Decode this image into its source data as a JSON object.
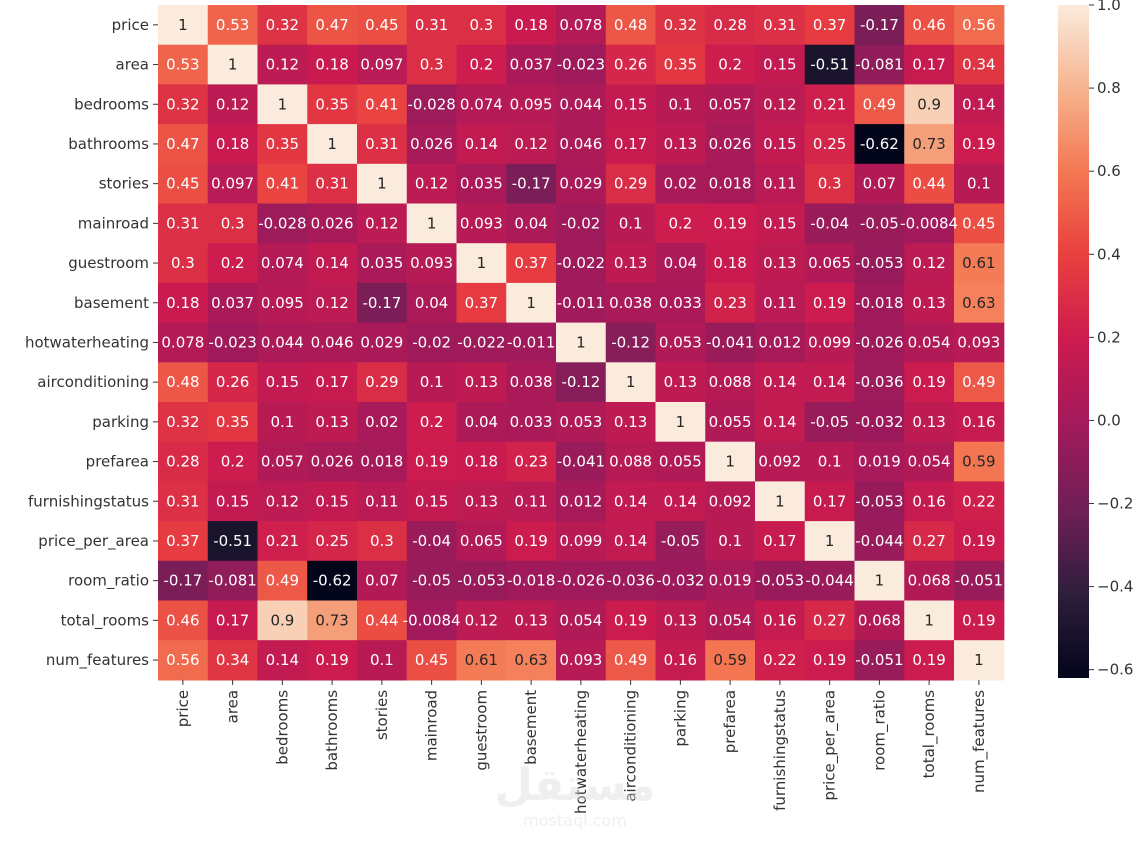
{
  "chart_data": {
    "type": "heatmap",
    "title": "",
    "xlabel": "",
    "ylabel": "",
    "labels": [
      "price",
      "area",
      "bedrooms",
      "bathrooms",
      "stories",
      "mainroad",
      "guestroom",
      "basement",
      "hotwaterheating",
      "airconditioning",
      "parking",
      "prefarea",
      "furnishingstatus",
      "price_per_area",
      "room_ratio",
      "total_rooms",
      "num_features"
    ],
    "matrix": [
      [
        1,
        0.53,
        0.32,
        0.47,
        0.45,
        0.31,
        0.3,
        0.18,
        0.078,
        0.48,
        0.32,
        0.28,
        0.31,
        0.37,
        -0.17,
        0.46,
        0.56
      ],
      [
        0.53,
        1,
        0.12,
        0.18,
        0.097,
        0.3,
        0.2,
        0.037,
        -0.023,
        0.26,
        0.35,
        0.2,
        0.15,
        -0.51,
        -0.081,
        0.17,
        0.34
      ],
      [
        0.32,
        0.12,
        1,
        0.35,
        0.41,
        -0.028,
        0.074,
        0.095,
        0.044,
        0.15,
        0.1,
        0.057,
        0.12,
        0.21,
        0.49,
        0.9,
        0.14
      ],
      [
        0.47,
        0.18,
        0.35,
        1,
        0.31,
        0.026,
        0.14,
        0.12,
        0.046,
        0.17,
        0.13,
        0.026,
        0.15,
        0.25,
        -0.62,
        0.73,
        0.19
      ],
      [
        0.45,
        0.097,
        0.41,
        0.31,
        1,
        0.12,
        0.035,
        -0.17,
        0.029,
        0.29,
        0.02,
        0.018,
        0.11,
        0.3,
        0.07,
        0.44,
        0.1
      ],
      [
        0.31,
        0.3,
        -0.028,
        0.026,
        0.12,
        1,
        0.093,
        0.04,
        -0.02,
        0.1,
        0.2,
        0.19,
        0.15,
        -0.04,
        -0.05,
        -0.0084,
        0.45
      ],
      [
        0.3,
        0.2,
        0.074,
        0.14,
        0.035,
        0.093,
        1,
        0.37,
        -0.022,
        0.13,
        0.04,
        0.18,
        0.13,
        0.065,
        -0.053,
        0.12,
        0.61
      ],
      [
        0.18,
        0.037,
        0.095,
        0.12,
        -0.17,
        0.04,
        0.37,
        1,
        -0.011,
        0.038,
        0.033,
        0.23,
        0.11,
        0.19,
        -0.018,
        0.13,
        0.63
      ],
      [
        0.078,
        -0.023,
        0.044,
        0.046,
        0.029,
        -0.02,
        -0.022,
        -0.011,
        1,
        -0.12,
        0.053,
        -0.041,
        0.012,
        0.099,
        -0.026,
        0.054,
        0.093
      ],
      [
        0.48,
        0.26,
        0.15,
        0.17,
        0.29,
        0.1,
        0.13,
        0.038,
        -0.12,
        1,
        0.13,
        0.088,
        0.14,
        0.14,
        -0.036,
        0.19,
        0.49
      ],
      [
        0.32,
        0.35,
        0.1,
        0.13,
        0.02,
        0.2,
        0.04,
        0.033,
        0.053,
        0.13,
        1,
        0.055,
        0.14,
        -0.05,
        -0.032,
        0.13,
        0.16
      ],
      [
        0.28,
        0.2,
        0.057,
        0.026,
        0.018,
        0.19,
        0.18,
        0.23,
        -0.041,
        0.088,
        0.055,
        1,
        0.092,
        0.1,
        0.019,
        0.054,
        0.59
      ],
      [
        0.31,
        0.15,
        0.12,
        0.15,
        0.11,
        0.15,
        0.13,
        0.11,
        0.012,
        0.14,
        0.14,
        0.092,
        1,
        0.17,
        -0.053,
        0.16,
        0.22
      ],
      [
        0.37,
        -0.51,
        0.21,
        0.25,
        0.3,
        -0.04,
        0.065,
        0.19,
        0.099,
        0.14,
        -0.05,
        0.1,
        0.17,
        1,
        -0.044,
        0.27,
        0.19
      ],
      [
        -0.17,
        -0.081,
        0.49,
        -0.62,
        0.07,
        -0.05,
        -0.053,
        -0.018,
        -0.026,
        -0.036,
        -0.032,
        0.019,
        -0.053,
        -0.044,
        1,
        0.068,
        -0.051
      ],
      [
        0.46,
        0.17,
        0.9,
        0.73,
        0.44,
        -0.0084,
        0.12,
        0.13,
        0.054,
        0.19,
        0.13,
        0.054,
        0.16,
        0.27,
        0.068,
        1,
        0.19
      ],
      [
        0.56,
        0.34,
        0.14,
        0.19,
        0.1,
        0.45,
        0.61,
        0.63,
        0.093,
        0.49,
        0.16,
        0.59,
        0.22,
        0.19,
        -0.051,
        0.19,
        1
      ]
    ],
    "colorbar": {
      "min": -0.62,
      "max": 1.0,
      "ticks": [
        1.0,
        0.8,
        0.6,
        0.4,
        0.2,
        0.0,
        -0.2,
        -0.4,
        -0.6
      ],
      "tick_labels": [
        "1.0",
        "0.8",
        "0.6",
        "0.4",
        "0.2",
        "0.0",
        "−0.2",
        "−0.4",
        "−0.6"
      ]
    },
    "colormap": "rocket"
  },
  "watermark": {
    "arabic": "مستقل",
    "latin": "mostaql.com"
  }
}
